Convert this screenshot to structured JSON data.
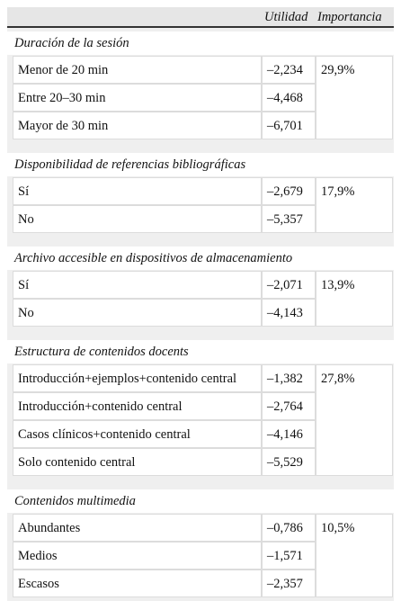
{
  "table": {
    "columns": [
      "Utilidad",
      "Importancia"
    ],
    "groups": [
      {
        "title": "Duración de la sesión",
        "importance": "29,9%",
        "rows": [
          {
            "label": "Menor de 20 min",
            "utility": "–2,234"
          },
          {
            "label": "Entre 20–30 min",
            "utility": "–4,468"
          },
          {
            "label": "Mayor de 30 min",
            "utility": "–6,701"
          }
        ]
      },
      {
        "title": "Disponibilidad de referencias bibliográficas",
        "importance": "17,9%",
        "rows": [
          {
            "label": "Sí",
            "utility": "–2,679"
          },
          {
            "label": "No",
            "utility": "–5,357"
          }
        ]
      },
      {
        "title": "Archivo accesible en dispositivos de almacenamiento",
        "importance": "13,9%",
        "rows": [
          {
            "label": "Sí",
            "utility": "–2,071"
          },
          {
            "label": "No",
            "utility": "–4,143"
          }
        ]
      },
      {
        "title": "Estructura de contenidos docents",
        "importance": "27,8%",
        "rows": [
          {
            "label": "Introducción+ejemplos+contenido central",
            "utility": "–1,382"
          },
          {
            "label": "Introducción+contenido central",
            "utility": "–2,764"
          },
          {
            "label": "Casos clínicos+contenido central",
            "utility": "–4,146"
          },
          {
            "label": "Solo contenido central",
            "utility": "–5,529"
          }
        ]
      },
      {
        "title": "Contenidos multimedia",
        "importance": "10,5%",
        "rows": [
          {
            "label": "Abundantes",
            "utility": "–0,786"
          },
          {
            "label": "Medios",
            "utility": "–1,571"
          },
          {
            "label": "Escasos",
            "utility": "–2,357"
          }
        ]
      }
    ]
  }
}
